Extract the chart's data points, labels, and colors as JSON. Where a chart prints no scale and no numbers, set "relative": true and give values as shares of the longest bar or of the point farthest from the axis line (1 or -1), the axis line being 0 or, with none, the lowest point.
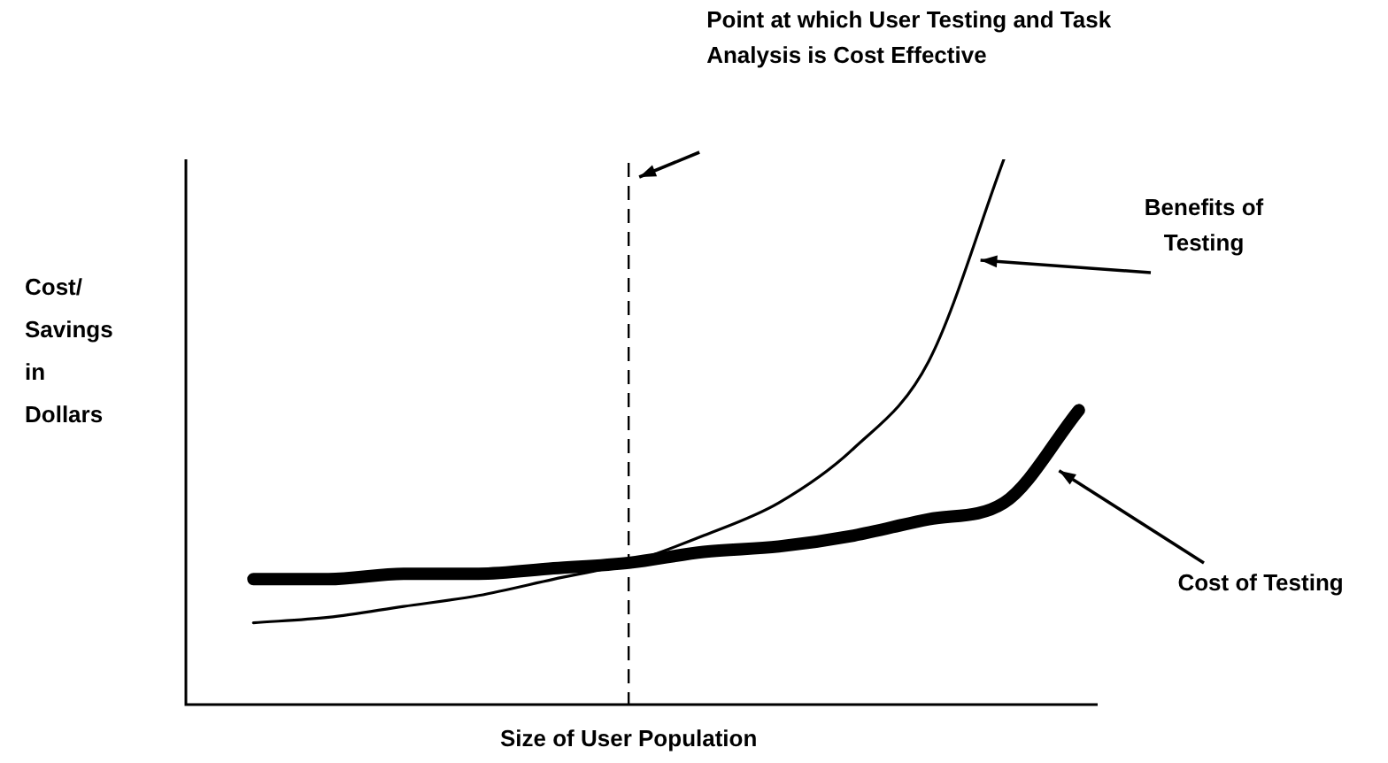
{
  "chart_data": {
    "type": "line",
    "relative": true,
    "categories": [
      null,
      null,
      null,
      null,
      null,
      null,
      null,
      null,
      null,
      null,
      null,
      null
    ],
    "series": [
      {
        "name": "Benefits of Testing",
        "color": "#000000",
        "values": [
          0.15,
          0.16,
          0.18,
          0.2,
          0.23,
          0.26,
          0.31,
          0.37,
          0.47,
          0.63,
          1,
          null
        ]
      },
      {
        "name": "Cost of Testing",
        "color": "#000000",
        "values": [
          0.23,
          0.23,
          0.24,
          0.24,
          0.25,
          0.26,
          0.28,
          0.29,
          0.31,
          0.34,
          0.37,
          0.54
        ]
      }
    ],
    "xlabel": "Size of User Population",
    "ylabel": "Cost/ Savings in Dollars",
    "annotations": [
      "Point at which User Testing and Task Analysis is Cost Effective"
    ],
    "marker": "none",
    "line_style": "solid"
  }
}
